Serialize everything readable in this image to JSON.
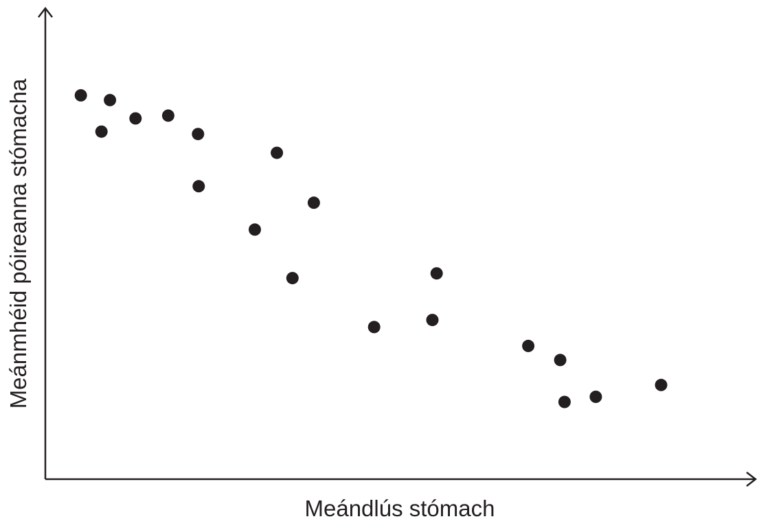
{
  "chart_data": {
    "type": "scatter",
    "xlabel": "Meándlús stómach",
    "ylabel": "Meánmhéid póireanna stómacha",
    "xlim": [
      0,
      100
    ],
    "ylim": [
      0,
      100
    ],
    "grid": false,
    "ticks": false,
    "point_color": "#231f20",
    "axis_color": "#231f20",
    "series": [
      {
        "points": [
          {
            "x": 5.0,
            "y": 81.5
          },
          {
            "x": 7.9,
            "y": 73.8
          },
          {
            "x": 9.1,
            "y": 80.5
          },
          {
            "x": 12.7,
            "y": 76.6
          },
          {
            "x": 17.3,
            "y": 77.2
          },
          {
            "x": 21.5,
            "y": 73.3
          },
          {
            "x": 21.6,
            "y": 62.2
          },
          {
            "x": 32.6,
            "y": 69.3
          },
          {
            "x": 29.5,
            "y": 53.0
          },
          {
            "x": 37.8,
            "y": 58.7
          },
          {
            "x": 34.8,
            "y": 42.7
          },
          {
            "x": 46.3,
            "y": 32.3
          },
          {
            "x": 54.5,
            "y": 33.8
          },
          {
            "x": 55.1,
            "y": 43.7
          },
          {
            "x": 68.0,
            "y": 28.3
          },
          {
            "x": 72.5,
            "y": 25.3
          },
          {
            "x": 73.1,
            "y": 16.4
          },
          {
            "x": 77.5,
            "y": 17.5
          },
          {
            "x": 86.7,
            "y": 20.0
          }
        ]
      }
    ]
  }
}
